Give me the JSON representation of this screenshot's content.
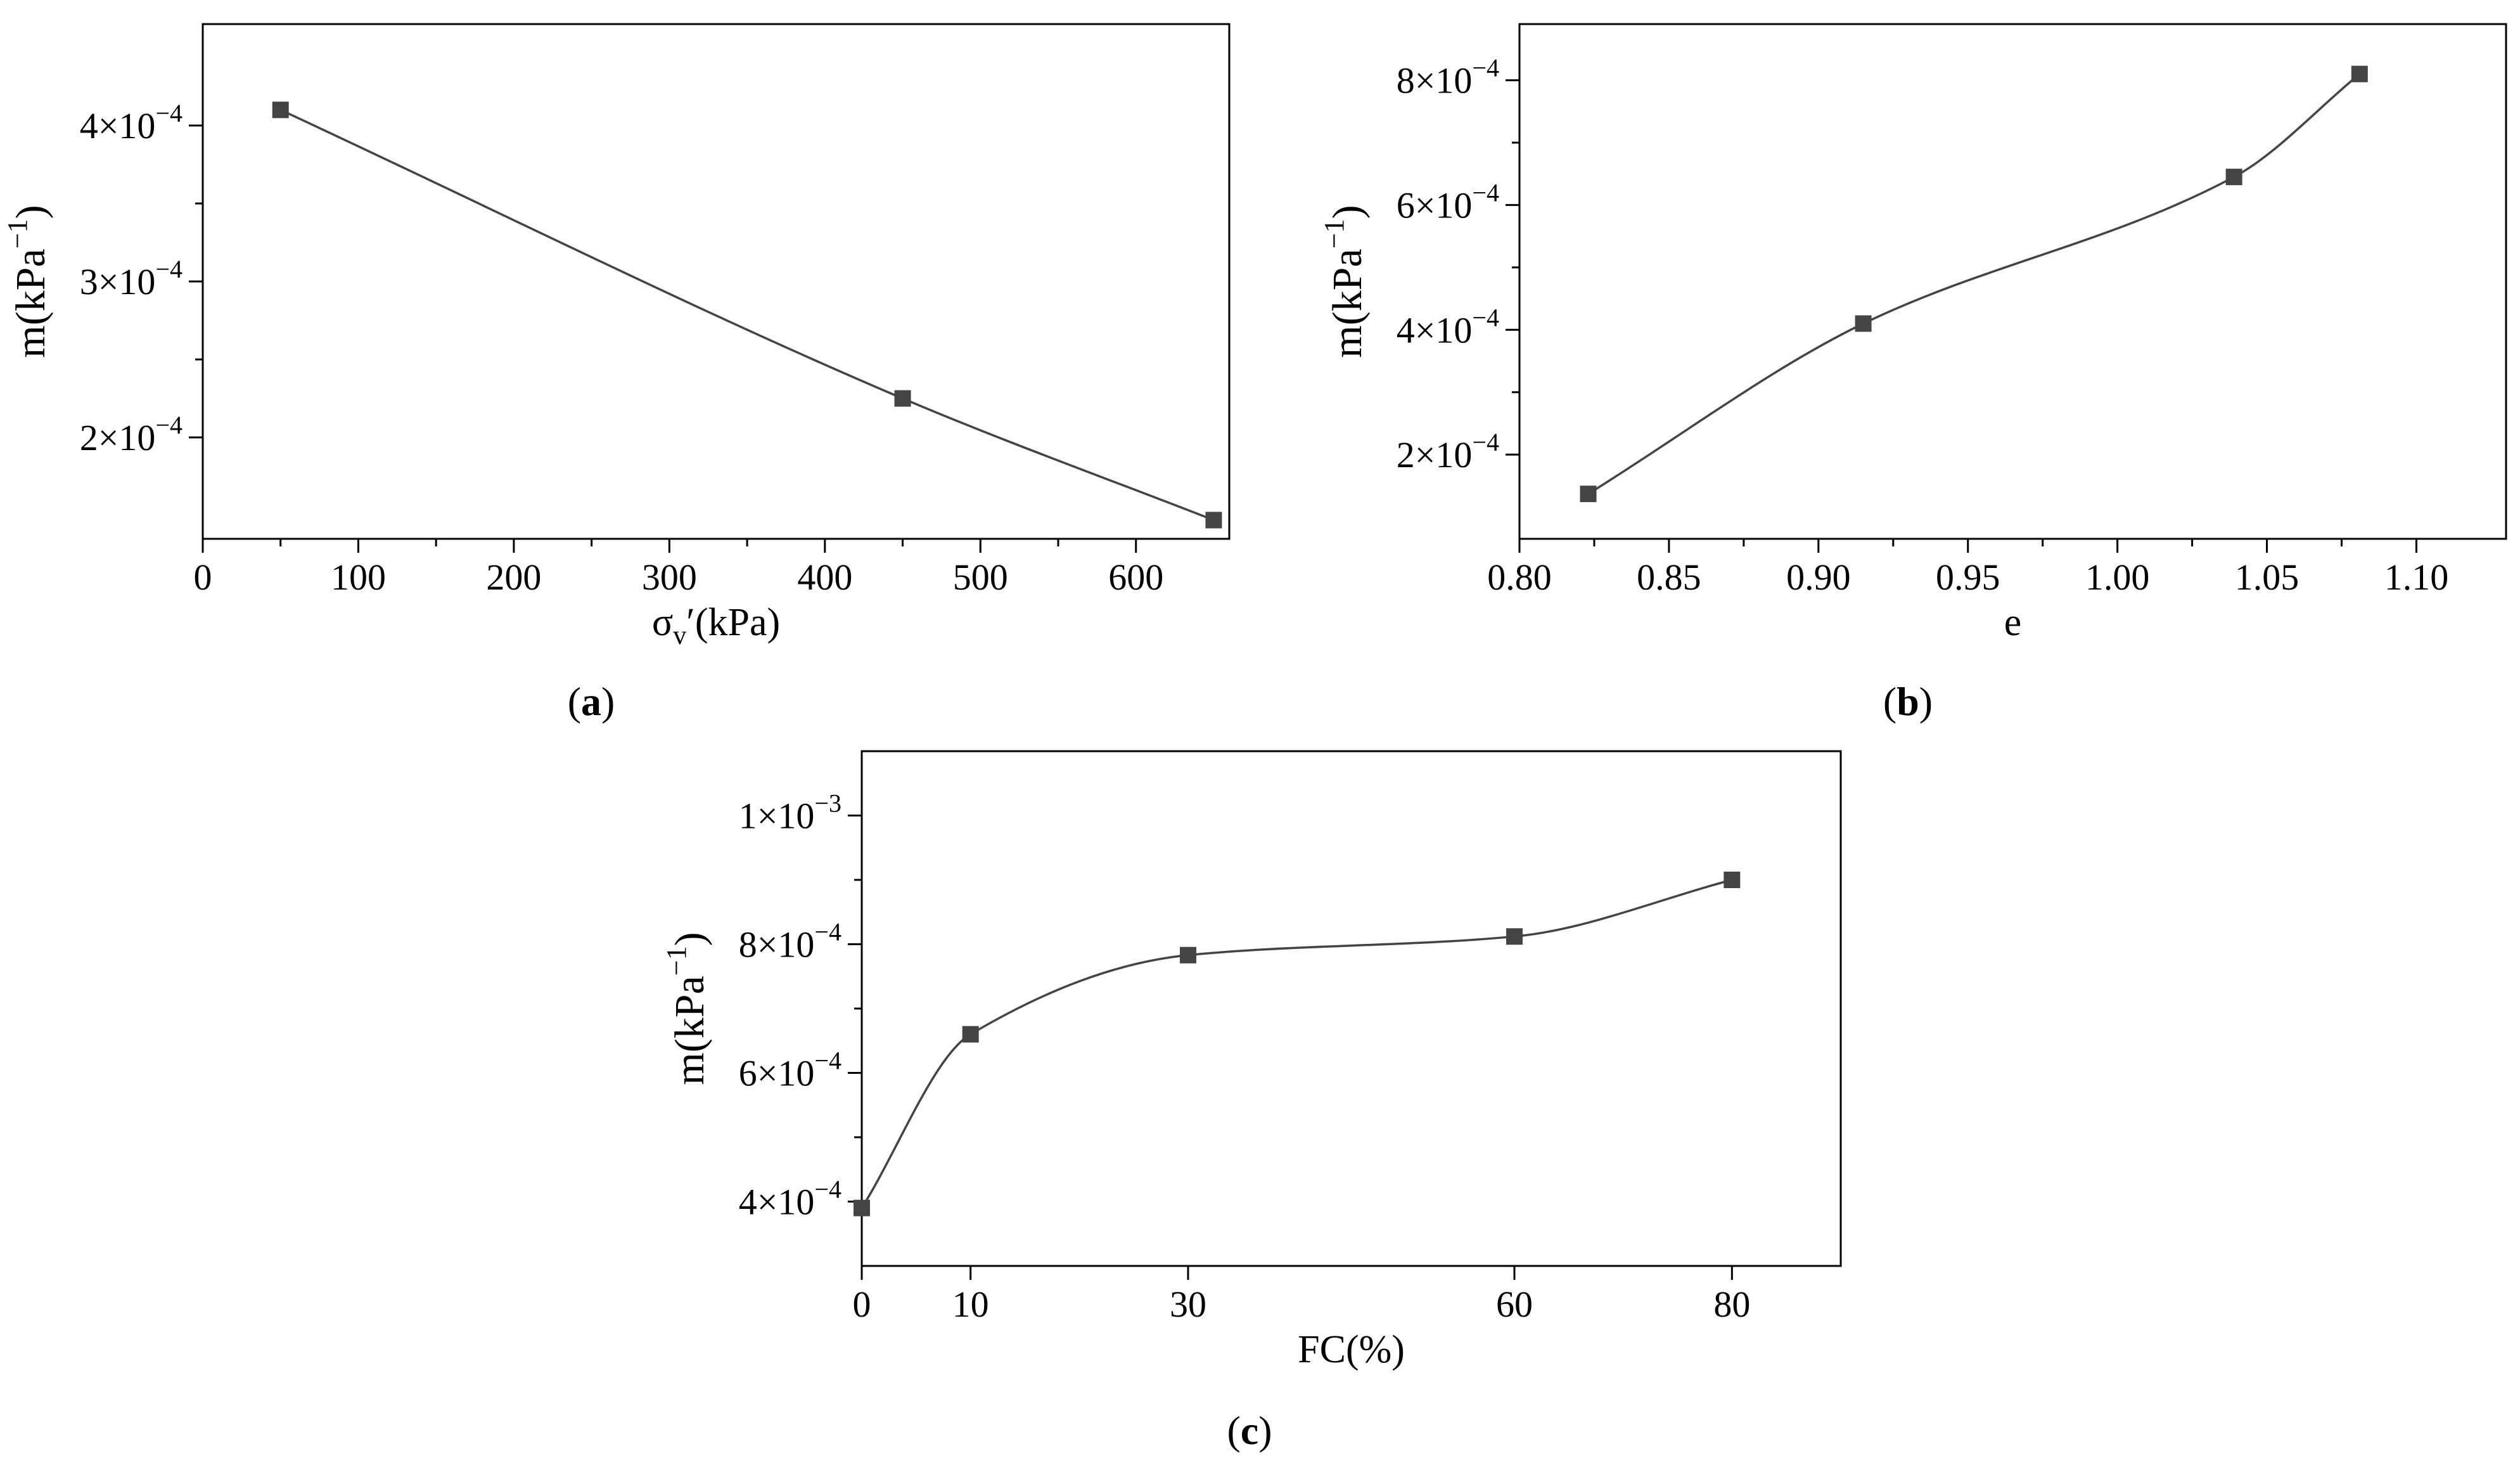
{
  "chart_data": [
    {
      "panel": "(a)",
      "panel_letter": "a",
      "type": "line",
      "xlabel_main": "σ",
      "xlabel_sub": "v",
      "xlabel_rest": "′(kPa)",
      "ylabel_main": "m(kPa",
      "ylabel_sup": "−1",
      "ylabel_close": ")",
      "xlim": [
        0,
        660
      ],
      "ylim": [
        0.000135,
        0.000465
      ],
      "xticks": [
        {
          "v": 0,
          "label": "0"
        },
        {
          "v": 100,
          "label": "100"
        },
        {
          "v": 200,
          "label": "200"
        },
        {
          "v": 300,
          "label": "300"
        },
        {
          "v": 400,
          "label": "400"
        },
        {
          "v": 500,
          "label": "500"
        },
        {
          "v": 600,
          "label": "600"
        }
      ],
      "yticks": [
        {
          "v": 0.0002,
          "m": "2",
          "e": "−4"
        },
        {
          "v": 0.0003,
          "m": "3",
          "e": "−4"
        },
        {
          "v": 0.0004,
          "m": "4",
          "e": "−4"
        }
      ],
      "x": [
        50,
        450,
        650
      ],
      "y": [
        0.00041,
        0.000225,
        0.000147
      ]
    },
    {
      "panel": "(b)",
      "panel_letter": "b",
      "type": "line",
      "xlabel_main": "e",
      "xlabel_sub": "",
      "xlabel_rest": "",
      "ylabel_main": "m(kPa",
      "ylabel_sup": "−1",
      "ylabel_close": ")",
      "xlim": [
        0.8,
        1.13
      ],
      "ylim": [
        6.5e-05,
        0.00089
      ],
      "xticks": [
        {
          "v": 0.8,
          "label": "0.80"
        },
        {
          "v": 0.85,
          "label": "0.85"
        },
        {
          "v": 0.9,
          "label": "0.90"
        },
        {
          "v": 0.95,
          "label": "0.95"
        },
        {
          "v": 1.0,
          "label": "1.00"
        },
        {
          "v": 1.05,
          "label": "1.05"
        },
        {
          "v": 1.1,
          "label": "1.10"
        }
      ],
      "yticks": [
        {
          "v": 0.0002,
          "m": "2",
          "e": "−4"
        },
        {
          "v": 0.0004,
          "m": "4",
          "e": "−4"
        },
        {
          "v": 0.0006,
          "m": "6",
          "e": "−4"
        },
        {
          "v": 0.0008,
          "m": "8",
          "e": "−4"
        }
      ],
      "x": [
        0.823,
        0.915,
        1.039,
        1.081
      ],
      "y": [
        0.000137,
        0.00041,
        0.000645,
        0.00081
      ]
    },
    {
      "panel": "(c)",
      "panel_letter": "c",
      "type": "line",
      "xlabel_main": "FC(%)",
      "xlabel_sub": "",
      "xlabel_rest": "",
      "ylabel_main": "m(kPa",
      "ylabel_sup": "−1",
      "ylabel_close": ")",
      "xlim": [
        0,
        90
      ],
      "ylim": [
        0.0003,
        0.0011
      ],
      "xticks": [
        {
          "v": 0,
          "label": "0"
        },
        {
          "v": 10,
          "label": "10"
        },
        {
          "v": 30,
          "label": "30"
        },
        {
          "v": 60,
          "label": "60"
        },
        {
          "v": 80,
          "label": "80"
        }
      ],
      "yticks": [
        {
          "v": 0.0004,
          "m": "4",
          "e": "−4"
        },
        {
          "v": 0.0006,
          "m": "6",
          "e": "−4"
        },
        {
          "v": 0.0008,
          "m": "8",
          "e": "−4"
        },
        {
          "v": 0.001,
          "m": "1",
          "e": "−3"
        }
      ],
      "x": [
        0,
        10,
        30,
        60,
        80
      ],
      "y": [
        0.00039,
        0.00066,
        0.000783,
        0.000812,
        0.0009
      ]
    }
  ],
  "colors": {
    "line": "#444444",
    "marker": "#444444",
    "axis": "#000000"
  }
}
